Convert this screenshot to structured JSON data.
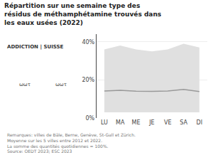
{
  "chart_data": {
    "type": "line",
    "title": "Répartition sur une semaine type des\nrésidus de méthamphétamine trouvés dans\nles eaux usées (2022)",
    "categories": [
      "LU",
      "MA",
      "ME",
      "JE",
      "VE",
      "SA",
      "DI"
    ],
    "values": [
      14.2,
      14.5,
      14.1,
      14.0,
      14.2,
      15.0,
      13.9
    ],
    "color": "#999999",
    "band": {
      "lower": [
        3,
        3,
        3,
        3,
        3,
        3,
        3
      ],
      "upper": [
        36,
        38,
        36,
        35,
        36,
        39,
        37
      ],
      "color": "#e0e0e0"
    },
    "ylim": [
      0,
      44
    ],
    "yticks": [
      {
        "value": 0,
        "label": "0%"
      },
      {
        "value": 20,
        "label": "20%"
      },
      {
        "value": 40,
        "label": "40%"
      }
    ],
    "grid": true,
    "footnotes": [
      "Remarques: villes de Bâle, Berne, Genève, St-Gall et Zürich.",
      "Moyenne sur les 5 villes entre 2012 et 2022.",
      "La somme des quantités quotidiennes = 100%.",
      "Source: OEDT 2023; ESC 2023"
    ],
    "logo": "ADDICTION | SUISSE",
    "icon_labels": [
      "ωωτ",
      "ωωτ"
    ]
  }
}
